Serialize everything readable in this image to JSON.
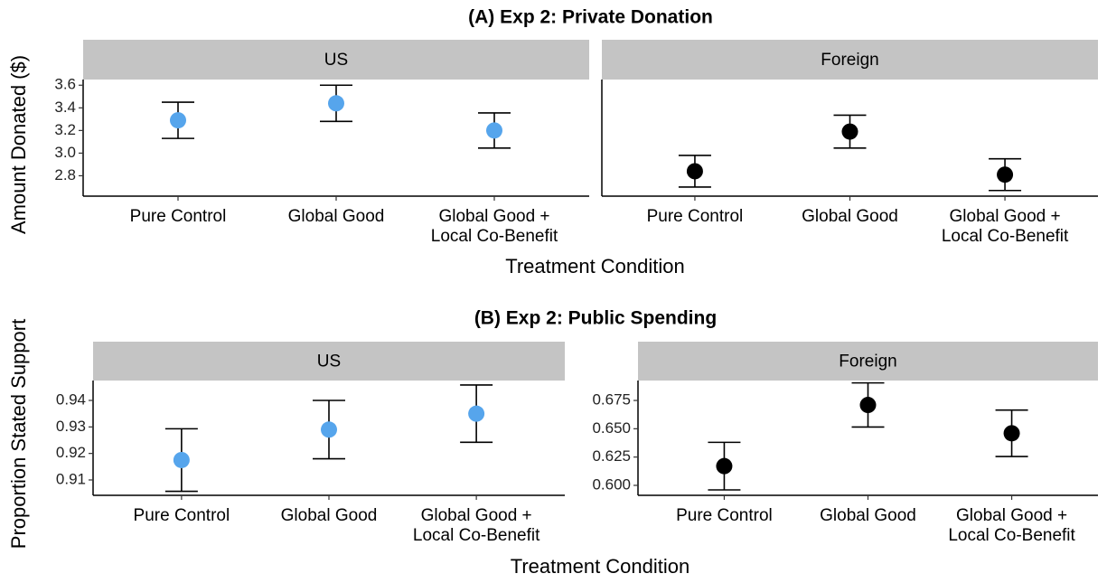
{
  "chart_data": [
    {
      "type": "errorbar",
      "title": "(A) Exp 2: Private Donation",
      "ylabel": "Amount Donated ($)",
      "xlabel": "Treatment Condition",
      "categories": [
        "Pure Control",
        "Global Good",
        "Global Good +\nLocal Co-Benefit"
      ],
      "facets": [
        {
          "name": "US",
          "color": "#56a5ec",
          "values": [
            3.29,
            3.44,
            3.2
          ],
          "errors": [
            0.16,
            0.16,
            0.155
          ],
          "ylim": [
            2.62,
            3.65
          ],
          "yticks": [
            {
              "value": 2.8,
              "label": "2.8"
            },
            {
              "value": 3.0,
              "label": "3.0"
            },
            3.2,
            3.4,
            3.6
          ]
        },
        {
          "name": "Foreign",
          "color": "#000000",
          "values": [
            2.84,
            3.19,
            2.81
          ],
          "errors": [
            0.14,
            0.145,
            0.14
          ],
          "ylim": [
            2.62,
            3.65
          ]
        }
      ]
    },
    {
      "type": "errorbar",
      "title": "(B) Exp 2: Public Spending",
      "ylabel": "Proportion Stated Support",
      "xlabel": "Treatment Condition",
      "categories": [
        "Pure Control",
        "Global Good",
        "Global Good +\nLocal Co-Benefit"
      ],
      "facets": [
        {
          "name": "US",
          "color": "#56a5ec",
          "values": [
            0.9175,
            0.929,
            0.935
          ],
          "errors": [
            0.0118,
            0.011,
            0.0108
          ],
          "ylim": [
            0.9042,
            0.9475
          ],
          "yticks": [
            0.91,
            0.92,
            0.93,
            0.94
          ]
        },
        {
          "name": "Foreign",
          "color": "#000000",
          "values": [
            0.617,
            0.671,
            0.646
          ],
          "errors": [
            0.021,
            0.0195,
            0.0205
          ],
          "ylim": [
            0.5912,
            0.6926
          ],
          "yticks": [
            {
              "value": 0.6,
              "label": "0.600"
            },
            0.625,
            {
              "value": 0.65,
              "label": "0.650"
            },
            0.675
          ]
        }
      ]
    }
  ]
}
